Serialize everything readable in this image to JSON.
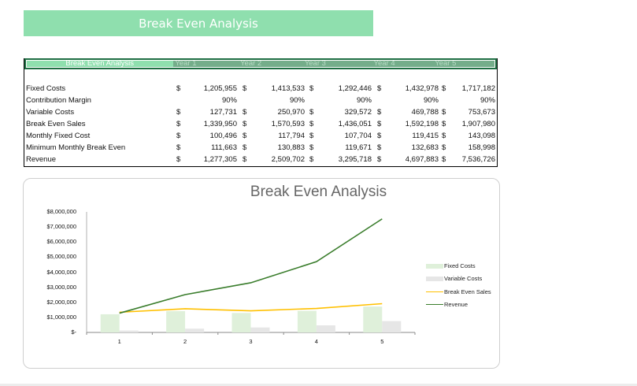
{
  "banner": {
    "title": "Break Even Analysis"
  },
  "table": {
    "header": [
      "Break Even Analysis",
      "Year 1",
      "Year 2",
      "Year 3",
      "Year 4",
      "Year 5"
    ],
    "currency_symbol": "$",
    "rows": [
      {
        "label": "Fixed Costs",
        "currency": true,
        "values": [
          "1,205,955",
          "1,413,533",
          "1,292,446",
          "1,432,978",
          "1,717,182"
        ]
      },
      {
        "label": "Contribution Margin",
        "currency": false,
        "values": [
          "90%",
          "90%",
          "90%",
          "90%",
          "90%"
        ]
      },
      {
        "label": "Variable Costs",
        "currency": true,
        "values": [
          "127,731",
          "250,970",
          "329,572",
          "469,788",
          "753,673"
        ]
      },
      {
        "label": "Break Even Sales",
        "currency": true,
        "values": [
          "1,339,950",
          "1,570,593",
          "1,436,051",
          "1,592,198",
          "1,907,980"
        ]
      },
      {
        "label": "Monthly Fixed Cost",
        "currency": true,
        "values": [
          "100,496",
          "117,794",
          "107,704",
          "119,415",
          "143,098"
        ]
      },
      {
        "label": "Minimum Monthly Break Even",
        "currency": true,
        "values": [
          "111,663",
          "130,883",
          "119,671",
          "132,683",
          "158,998"
        ]
      },
      {
        "label": "Revenue",
        "currency": true,
        "values": [
          "1,277,305",
          "2,509,702",
          "3,295,718",
          "4,697,883",
          "7,536,726"
        ]
      }
    ]
  },
  "colors": {
    "banner": "#8fdfae",
    "header_dark": "#74ad8a",
    "fixed_costs": "#dff0da",
    "variable_costs": "#e6e6e6",
    "break_even_sales": "#ffc000",
    "revenue": "#3a7d2c"
  },
  "chart_data": {
    "type": "bar",
    "title": "Break Even Analysis",
    "xlabel": "",
    "ylabel": "",
    "categories": [
      "1",
      "2",
      "3",
      "4",
      "5"
    ],
    "ylim": [
      0,
      8000000
    ],
    "yticks": [
      "$8,000,000",
      "$7,000,000",
      "$6,000,000",
      "$5,000,000",
      "$4,000,000",
      "$3,000,000",
      "$2,000,000",
      "$1,000,000",
      "$-"
    ],
    "grid": false,
    "legend_position": "right",
    "series": [
      {
        "name": "Fixed Costs",
        "type": "bar",
        "values": [
          1205955,
          1413533,
          1292446,
          1432978,
          1717182
        ]
      },
      {
        "name": "Variable Costs",
        "type": "bar",
        "values": [
          127731,
          250970,
          329572,
          469788,
          753673
        ]
      },
      {
        "name": "Break Even Sales",
        "type": "line",
        "values": [
          1339950,
          1570593,
          1436051,
          1592198,
          1907980
        ]
      },
      {
        "name": "Revenue",
        "type": "line",
        "values": [
          1277305,
          2509702,
          3295718,
          4697883,
          7536726
        ]
      }
    ]
  }
}
